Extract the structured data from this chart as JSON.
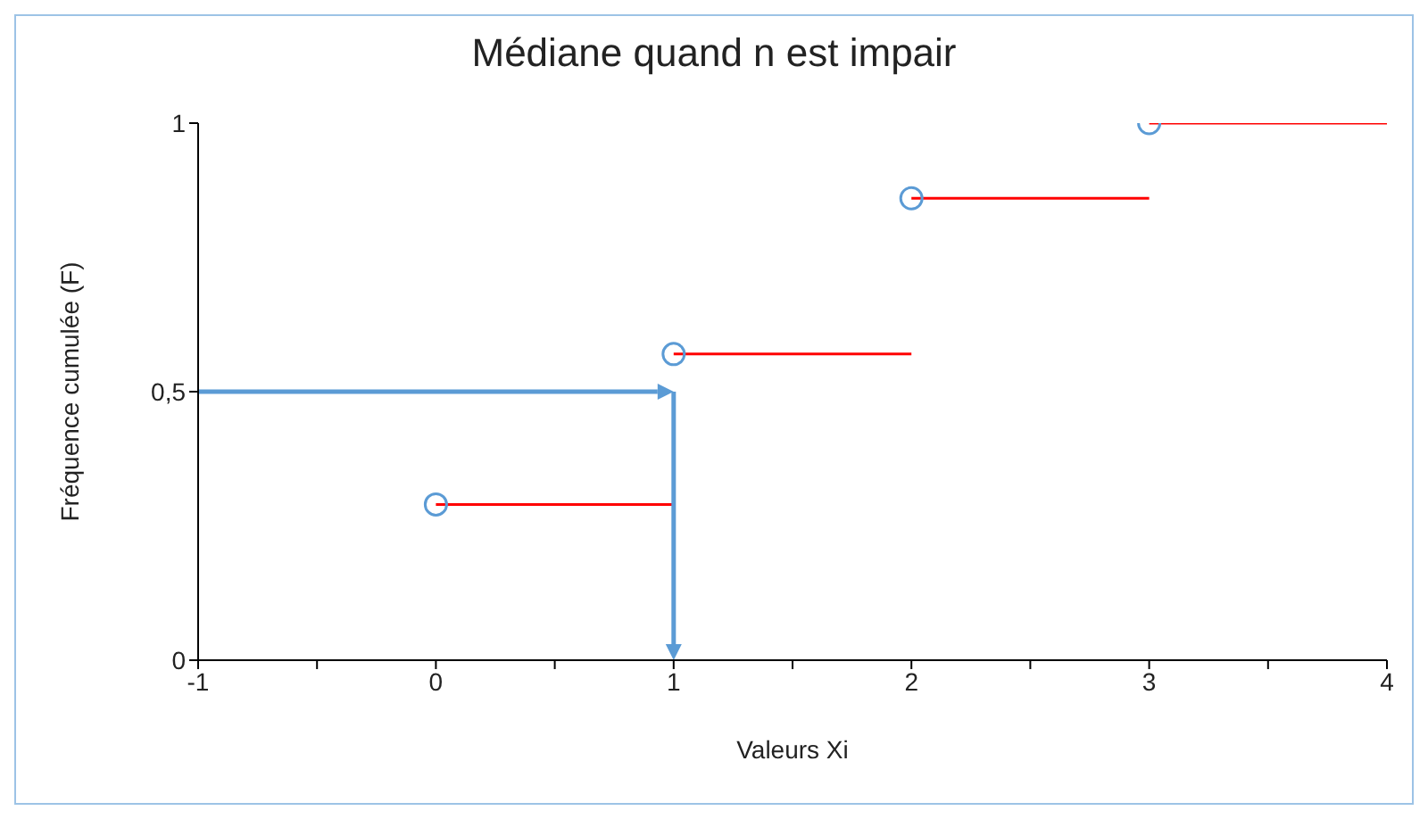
{
  "chart_data": {
    "type": "line",
    "title": "Médiane quand n est impair",
    "xlabel": "Valeurs Xi",
    "ylabel": "Fréquence cumulée (F)",
    "xlim": [
      -1,
      4
    ],
    "xticks": [
      -1,
      {
        "value": -0.5,
        "label": null
      },
      0,
      {
        "value": 0.5,
        "label": null
      },
      1,
      {
        "value": 1.5,
        "label": null
      },
      2,
      {
        "value": 2.5,
        "label": null
      },
      3,
      {
        "value": 3.5,
        "label": null
      },
      4
    ],
    "ylim": [
      0,
      1
    ],
    "yticks": [
      0,
      {
        "value": 0.5,
        "label": "0,5"
      },
      1
    ],
    "grid": false,
    "legend": false,
    "series": [
      {
        "type": "scatter",
        "marker": "circle",
        "color": "#5b9bd5",
        "x": [
          0,
          1,
          2,
          3
        ],
        "values": [
          0.29,
          0.57,
          0.86,
          1
        ]
      },
      {
        "color": "#ff0000",
        "x": [
          0,
          1
        ],
        "values": [
          0.29,
          0.29
        ]
      },
      {
        "color": "#ff0000",
        "x": [
          1,
          2
        ],
        "values": [
          0.57,
          0.57
        ]
      },
      {
        "color": "#ff0000",
        "x": [
          2,
          3
        ],
        "values": [
          0.86,
          0.86
        ]
      },
      {
        "color": "#ff0000",
        "x": [
          3,
          4
        ],
        "values": [
          1,
          1
        ]
      }
    ],
    "ref_lines": [
      {
        "axis": "y",
        "value": 0.5,
        "color": "#5b9bd5"
      },
      {
        "axis": "x",
        "value": 1,
        "color": "#5b9bd5"
      }
    ]
  }
}
